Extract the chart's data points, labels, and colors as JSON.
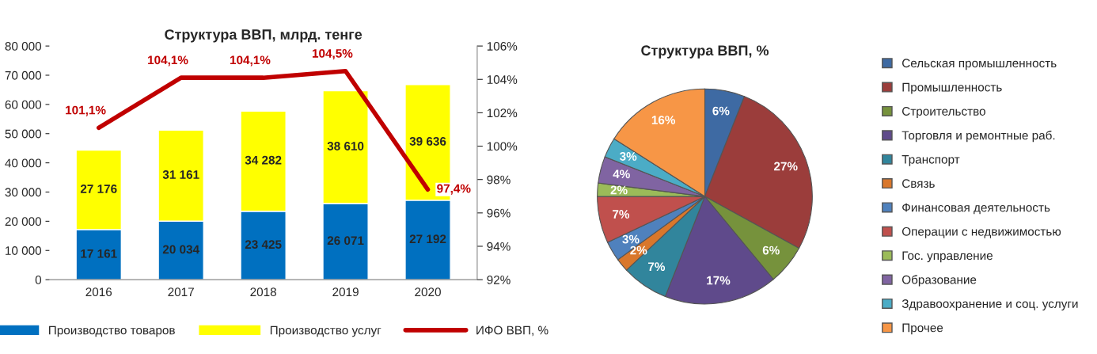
{
  "chart_data": [
    {
      "type": "bar",
      "title": "Структура ВВП, млрд. тенге",
      "categories": [
        "2016",
        "2017",
        "2018",
        "2019",
        "2020"
      ],
      "stacked": true,
      "series": [
        {
          "name": "Производство товаров",
          "color": "#0070c0",
          "values": [
            17161,
            20034,
            23425,
            26071,
            27192
          ],
          "value_labels": [
            "17 161",
            "20 034",
            "23 425",
            "26 071",
            "27 192"
          ]
        },
        {
          "name": "Производство услуг",
          "color": "#ffff00",
          "values": [
            27176,
            31161,
            34282,
            38610,
            39636
          ],
          "value_labels": [
            "27 176",
            "31 161",
            "34 282",
            "38 610",
            "39 636"
          ]
        },
        {
          "name": "ИФО ВВП, %",
          "type": "line",
          "axis": "y2",
          "color": "#c00000",
          "values": [
            101.1,
            104.1,
            104.1,
            104.5,
            97.4
          ],
          "value_labels": [
            "101,1%",
            "104,1%",
            "104,1%",
            "104,5%",
            "97,4%"
          ]
        }
      ],
      "ylim": [
        0,
        80000
      ],
      "yticks": [
        {
          "value": 0,
          "label": "0"
        },
        {
          "value": 10000,
          "label": "10 000"
        },
        {
          "value": 20000,
          "label": "20 000"
        },
        {
          "value": 30000,
          "label": "30 000"
        },
        {
          "value": 40000,
          "label": "40 000"
        },
        {
          "value": 50000,
          "label": "50 000"
        },
        {
          "value": 60000,
          "label": "60 000"
        },
        {
          "value": 70000,
          "label": "70 000"
        },
        {
          "value": 80000,
          "label": "80 000"
        }
      ],
      "y2lim": [
        92,
        106
      ],
      "y2ticks": [
        {
          "value": 92,
          "label": "92%"
        },
        {
          "value": 94,
          "label": "94%"
        },
        {
          "value": 96,
          "label": "96%"
        },
        {
          "value": 98,
          "label": "98%"
        },
        {
          "value": 100,
          "label": "100%"
        },
        {
          "value": 102,
          "label": "102%"
        },
        {
          "value": 104,
          "label": "104%"
        },
        {
          "value": 106,
          "label": "106%"
        }
      ],
      "legend": "bottom",
      "grid": false
    },
    {
      "type": "pie",
      "title": "Структура ВВП, %",
      "categories": [
        "Сельская промышленность",
        "Промышленность",
        "Строительство",
        "Торговля и ремонтные раб.",
        "Транспорт",
        "Связь",
        "Финансовая деятельность",
        "Операции с недвижимостью",
        "Гос. управление",
        "Образование",
        "Здравоохранение и соц. услуги",
        "Прочее"
      ],
      "values": [
        6,
        27,
        6,
        17,
        7,
        2,
        3,
        7,
        2,
        4,
        3,
        16
      ],
      "value_labels": [
        "6%",
        "27%",
        "6%",
        "17%",
        "7%",
        "2%",
        "3%",
        "7%",
        "2%",
        "4%",
        "3%",
        "16%"
      ],
      "colors": [
        "#3e6aa3",
        "#9b3d3b",
        "#76923c",
        "#5f4a8b",
        "#31859c",
        "#d9772b",
        "#4f81bd",
        "#c0504d",
        "#9bbb59",
        "#8064a2",
        "#4bacc6",
        "#f79646"
      ],
      "legend": "right"
    }
  ]
}
